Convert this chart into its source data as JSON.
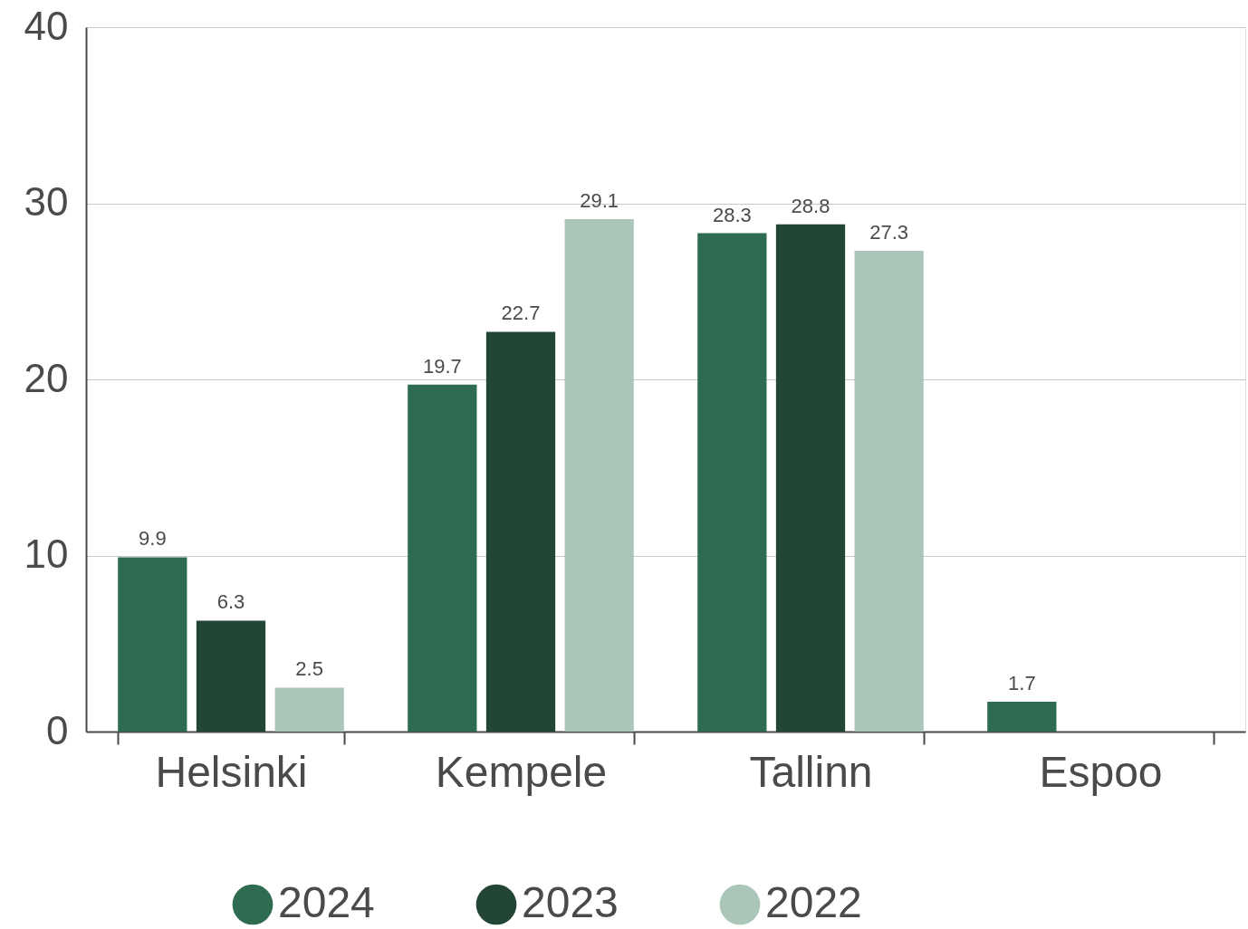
{
  "chart_data": {
    "type": "bar",
    "categories": [
      "Helsinki",
      "Kempele",
      "Tallinn",
      "Espoo"
    ],
    "series": [
      {
        "name": "2024",
        "color": "#2e6b51",
        "values": [
          9.9,
          19.7,
          28.3,
          1.7
        ]
      },
      {
        "name": "2023",
        "color": "#234535",
        "values": [
          6.3,
          22.7,
          28.8,
          null
        ]
      },
      {
        "name": "2022",
        "color": "#abc5b8",
        "values": [
          2.5,
          29.1,
          27.3,
          null
        ]
      }
    ],
    "ylim": [
      0,
      40
    ],
    "yticks": [
      0,
      10,
      20,
      30,
      40
    ],
    "grid": "y",
    "legend": "bottom",
    "data_labels": true
  }
}
